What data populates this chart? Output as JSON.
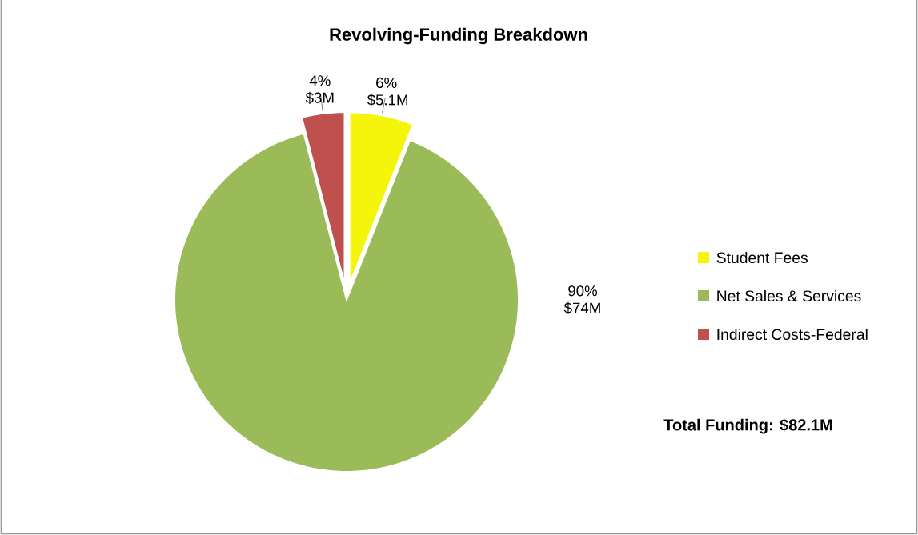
{
  "chart_data": {
    "type": "pie",
    "title": "Revolving-Funding Breakdown",
    "categories": [
      "Student Fees",
      "Net Sales & Services",
      "Indirect Costs-Federal"
    ],
    "values": [
      6,
      90,
      4
    ],
    "value_labels": [
      "6% $5.1M",
      "90% $74M",
      "4% $3M"
    ],
    "colors": [
      "#f5f50c",
      "#9bbb59",
      "#c0504d"
    ],
    "legend": "right",
    "annotations": [
      "Total Funding: $82.1M"
    ]
  }
}
